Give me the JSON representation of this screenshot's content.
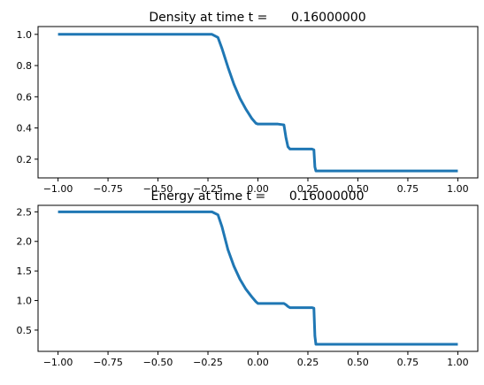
{
  "chart_data": [
    {
      "type": "line",
      "title": "Density at time t =      0.16000000",
      "xlabel": "",
      "ylabel": "",
      "xlim": [
        -1.1,
        1.1
      ],
      "ylim": [
        0.08,
        1.05
      ],
      "xticks": [
        -1.0,
        -0.75,
        -0.5,
        -0.25,
        0.0,
        0.25,
        0.5,
        0.75,
        1.0
      ],
      "xtick_labels": [
        "−1.00",
        "−0.75",
        "−0.50",
        "−0.25",
        "0.00",
        "0.25",
        "0.50",
        "0.75",
        "1.00"
      ],
      "yticks": [
        0.2,
        0.4,
        0.6,
        0.8,
        1.0
      ],
      "ytick_labels": [
        "0.2",
        "0.4",
        "0.6",
        "0.8",
        "1.0"
      ],
      "grid": false,
      "series": [
        {
          "color": "#1f77b4",
          "x": [
            -1.0,
            -0.23,
            -0.2,
            -0.18,
            -0.15,
            -0.12,
            -0.09,
            -0.06,
            -0.03,
            -0.01,
            0.0,
            0.02,
            0.06,
            0.1,
            0.13,
            0.14,
            0.15,
            0.16,
            0.2,
            0.25,
            0.27,
            0.28,
            0.285,
            0.29,
            0.3,
            0.5,
            0.75,
            1.0
          ],
          "y": [
            1.0,
            1.0,
            0.98,
            0.91,
            0.79,
            0.68,
            0.59,
            0.52,
            0.46,
            0.43,
            0.425,
            0.425,
            0.425,
            0.425,
            0.42,
            0.34,
            0.28,
            0.265,
            0.265,
            0.265,
            0.265,
            0.26,
            0.15,
            0.125,
            0.125,
            0.125,
            0.125,
            0.125
          ]
        }
      ]
    },
    {
      "type": "line",
      "title": "Energy at time t =      0.16000000",
      "xlabel": "",
      "ylabel": "",
      "xlim": [
        -1.1,
        1.1
      ],
      "ylim": [
        0.14,
        2.61
      ],
      "xticks": [
        -1.0,
        -0.75,
        -0.5,
        -0.25,
        0.0,
        0.25,
        0.5,
        0.75,
        1.0
      ],
      "xtick_labels": [
        "−1.00",
        "−0.75",
        "−0.50",
        "−0.25",
        "0.00",
        "0.25",
        "0.50",
        "0.75",
        "1.00"
      ],
      "yticks": [
        0.5,
        1.0,
        1.5,
        2.0,
        2.5
      ],
      "ytick_labels": [
        "0.5",
        "1.0",
        "1.5",
        "2.0",
        "2.5"
      ],
      "grid": false,
      "series": [
        {
          "color": "#1f77b4",
          "x": [
            -1.0,
            -0.23,
            -0.2,
            -0.18,
            -0.15,
            -0.12,
            -0.09,
            -0.06,
            -0.03,
            -0.01,
            0.0,
            0.02,
            0.06,
            0.1,
            0.13,
            0.14,
            0.15,
            0.16,
            0.2,
            0.25,
            0.27,
            0.28,
            0.285,
            0.29,
            0.3,
            0.5,
            0.75,
            1.0
          ],
          "y": [
            2.5,
            2.5,
            2.45,
            2.25,
            1.86,
            1.58,
            1.36,
            1.19,
            1.06,
            0.98,
            0.95,
            0.95,
            0.95,
            0.95,
            0.95,
            0.93,
            0.9,
            0.88,
            0.88,
            0.88,
            0.88,
            0.87,
            0.4,
            0.26,
            0.26,
            0.26,
            0.26,
            0.26
          ]
        }
      ]
    }
  ]
}
